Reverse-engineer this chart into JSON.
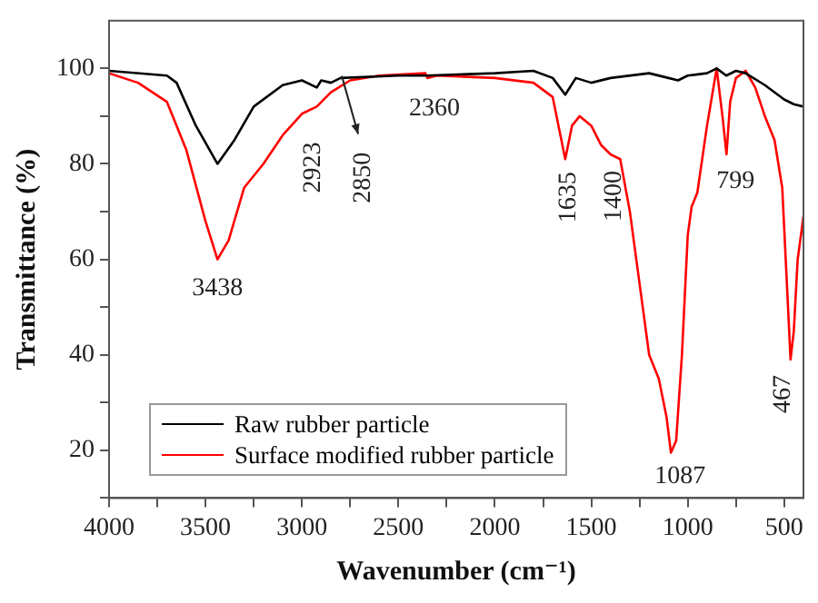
{
  "chart_data": {
    "type": "line",
    "xlabel": "Wavenumber (cm⁻¹)",
    "ylabel": "Transmittance (%)",
    "xlim": [
      4000,
      400
    ],
    "ylim": [
      10,
      110
    ],
    "xticks": [
      4000,
      {
        "value": 3750,
        "label": null
      },
      3500,
      {
        "value": 3250,
        "label": null
      },
      3000,
      {
        "value": 2750,
        "label": null
      },
      2500,
      {
        "value": 2250,
        "label": null
      },
      2000,
      {
        "value": 1750,
        "label": null
      },
      1500,
      {
        "value": 1250,
        "label": null
      },
      1000,
      {
        "value": 750,
        "label": null
      },
      500
    ],
    "yticks": [
      {
        "value": 10,
        "label": null
      },
      20,
      {
        "value": 30,
        "label": null
      },
      40,
      {
        "value": 50,
        "label": null
      },
      60,
      {
        "value": 70,
        "label": null
      },
      80,
      {
        "value": 90,
        "label": null
      },
      100
    ],
    "legend": "bottom left",
    "grid": false,
    "marker": "none",
    "line_style": "solid",
    "series": [
      {
        "name": "Raw rubber particle",
        "color": "#000000",
        "x": [
          4000,
          3700,
          3650,
          3550,
          3438,
          3350,
          3250,
          3100,
          3000,
          2923,
          2900,
          2850,
          2800,
          2500,
          2360,
          2000,
          1800,
          1700,
          1635,
          1580,
          1500,
          1400,
          1200,
          1100,
          1050,
          1000,
          900,
          850,
          800,
          750,
          700,
          600,
          500,
          450,
          400
        ],
        "values": [
          99.5,
          98.5,
          97,
          88,
          80,
          85,
          92,
          96.5,
          97.5,
          96,
          97.5,
          97,
          98,
          98.5,
          98.5,
          99,
          99.5,
          98,
          94.5,
          98,
          97,
          98,
          99,
          98,
          97.5,
          98.5,
          99,
          100,
          98.5,
          99.5,
          99,
          96.5,
          93.5,
          92.5,
          92
        ]
      },
      {
        "name": "Surface modified rubber particle",
        "color": "#ff0000",
        "x": [
          4000,
          3850,
          3700,
          3600,
          3500,
          3438,
          3380,
          3300,
          3200,
          3100,
          3000,
          2923,
          2850,
          2750,
          2600,
          2360,
          2350,
          2300,
          2000,
          1800,
          1700,
          1660,
          1635,
          1600,
          1560,
          1500,
          1450,
          1400,
          1350,
          1300,
          1250,
          1200,
          1150,
          1110,
          1087,
          1060,
          1030,
          1000,
          980,
          950,
          900,
          850,
          820,
          799,
          780,
          750,
          700,
          650,
          600,
          550,
          510,
          480,
          467,
          450,
          430,
          400
        ],
        "values": [
          99,
          97,
          93,
          83,
          68,
          60,
          64,
          75,
          80,
          86,
          90.5,
          92,
          95,
          97.5,
          98.5,
          99,
          98,
          98.5,
          98,
          97,
          94,
          86,
          81,
          88,
          90,
          88,
          84,
          82,
          81,
          70,
          55,
          40,
          35,
          27,
          19.5,
          22,
          40,
          65,
          71,
          74,
          88,
          100,
          90,
          82,
          93,
          98,
          99.5,
          96,
          90,
          85,
          75,
          50,
          39,
          45,
          60,
          69
        ]
      }
    ],
    "annotations": [
      {
        "text": "3438",
        "x": 3438,
        "y": 60
      },
      {
        "text": "2923",
        "x": 2923,
        "y": 96
      },
      {
        "text": "2850",
        "x": 2850,
        "y": 95
      },
      {
        "text": "2360",
        "x": 2360,
        "y": 98
      },
      {
        "text": "1635",
        "x": 1635,
        "y": 81
      },
      {
        "text": "1400",
        "x": 1400,
        "y": 82
      },
      {
        "text": "799",
        "x": 799,
        "y": 82
      },
      {
        "text": "1087",
        "x": 1087,
        "y": 19.5
      },
      {
        "text": "467",
        "x": 467,
        "y": 39
      }
    ]
  }
}
